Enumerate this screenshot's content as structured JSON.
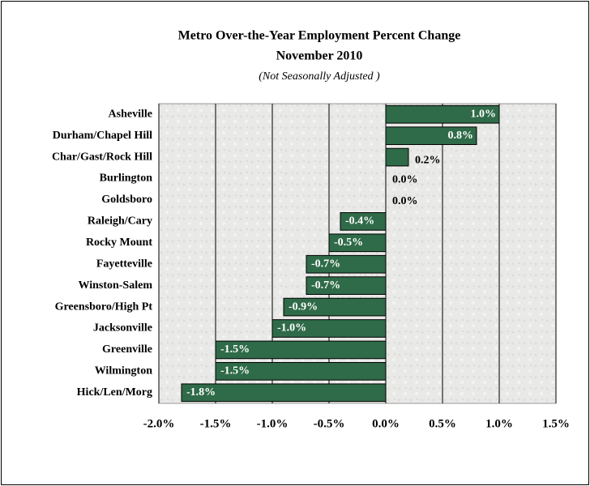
{
  "chart_data": {
    "type": "bar",
    "orientation": "horizontal",
    "title": "Metro Over-the-Year Employment Percent Change",
    "subtitle": "November 2010",
    "note": "(Not Seasonally Adjusted )",
    "categories": [
      "Asheville",
      "Durham/Chapel Hill",
      "Char/Gast/Rock Hill",
      "Burlington",
      "Goldsboro",
      "Raleigh/Cary",
      "Rocky Mount",
      "Fayetteville",
      "Winston-Salem",
      "Greensboro/High Pt",
      "Jacksonville",
      "Greenville",
      "Wilmington",
      "Hick/Len/Morg"
    ],
    "values": [
      1.0,
      0.8,
      0.2,
      0.0,
      0.0,
      -0.4,
      -0.5,
      -0.7,
      -0.7,
      -0.9,
      -1.0,
      -1.5,
      -1.5,
      -1.8
    ],
    "value_labels": [
      "1.0%",
      "0.8%",
      "0.2%",
      "0.0%",
      "0.0%",
      "-0.4%",
      "-0.5%",
      "-0.7%",
      "-0.7%",
      "-0.9%",
      "-1.0%",
      "-1.5%",
      "-1.5%",
      "-1.8%"
    ],
    "color": "#2f6b48",
    "xlim": [
      -2.0,
      1.5
    ],
    "xticks": [
      {
        "value": -2.0,
        "label": "-2.0%"
      },
      {
        "value": -1.5,
        "label": "-1.5%"
      },
      {
        "value": -1.0,
        "label": "-1.0%"
      },
      {
        "value": -0.5,
        "label": "-0.5%"
      },
      {
        "value": 0.0,
        "label": "0.0%"
      },
      {
        "value": 0.5,
        "label": "0.5%"
      },
      {
        "value": 1.0,
        "label": "1.0%"
      },
      {
        "value": 1.5,
        "label": "1.5%"
      }
    ],
    "grid": true
  }
}
